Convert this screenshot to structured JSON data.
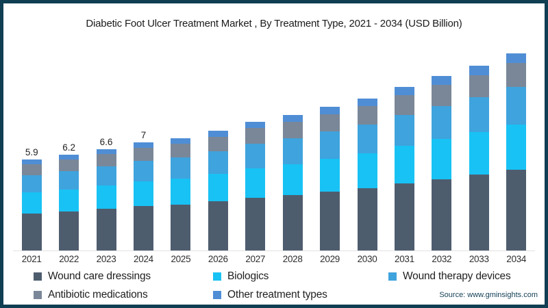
{
  "title": "Diabetic Foot Ulcer Treatment Market , By Treatment Type, 2021 - 2034 (USD Billion)",
  "source": "Source: www.gminsights.com",
  "colors": {
    "frame_border": "#103e52",
    "title_text": "#1b1b1b",
    "axis_label_text": "#2d2d2d",
    "baseline": "#e3e3e3",
    "source_text": "#113e54"
  },
  "chart_data": {
    "type": "bar",
    "stacked": true,
    "title": "Diabetic Foot Ulcer Treatment Market , By Treatment Type, 2021 - 2034 (USD Billion)",
    "xlabel": "",
    "ylabel": "USD Billion",
    "grid": false,
    "legend_position": "bottom",
    "categories": [
      "2021",
      "2022",
      "2023",
      "2024",
      "2025",
      "2026",
      "2027",
      "2028",
      "2029",
      "2030",
      "2031",
      "2032",
      "2033",
      "2034"
    ],
    "totals": [
      5.9,
      6.2,
      6.6,
      7.0,
      7.3,
      7.8,
      8.3,
      8.8,
      9.3,
      9.9,
      10.6,
      11.3,
      12.0,
      12.8
    ],
    "total_labels": [
      "5.9",
      "6.2",
      "6.6",
      "7",
      "",
      "",
      "",
      "",
      "",
      "",
      "",
      "",
      "",
      ""
    ],
    "series": [
      {
        "name": "Wound care dressings",
        "color": "#4e5d6e",
        "values": [
          2.42,
          2.54,
          2.71,
          2.87,
          2.99,
          3.2,
          3.4,
          3.61,
          3.81,
          4.06,
          4.35,
          4.63,
          4.92,
          5.25
        ]
      },
      {
        "name": "Biologics",
        "color": "#18c2f4",
        "values": [
          1.36,
          1.43,
          1.52,
          1.61,
          1.68,
          1.79,
          1.91,
          2.02,
          2.14,
          2.28,
          2.44,
          2.6,
          2.76,
          2.94
        ]
      },
      {
        "name": "Wound therapy devices",
        "color": "#3fa3dd",
        "values": [
          1.12,
          1.18,
          1.25,
          1.33,
          1.39,
          1.48,
          1.58,
          1.67,
          1.77,
          1.88,
          2.01,
          2.15,
          2.28,
          2.43
        ]
      },
      {
        "name": "Antibiotic medications",
        "color": "#7a8798",
        "values": [
          0.71,
          0.74,
          0.79,
          0.84,
          0.88,
          0.94,
          1.0,
          1.06,
          1.12,
          1.19,
          1.27,
          1.36,
          1.44,
          1.54
        ]
      },
      {
        "name": "Other treatment types",
        "color": "#4f8ed5",
        "values": [
          0.3,
          0.31,
          0.33,
          0.35,
          0.37,
          0.39,
          0.42,
          0.44,
          0.47,
          0.5,
          0.53,
          0.57,
          0.6,
          0.64
        ]
      }
    ]
  },
  "legend": {
    "items": [
      {
        "label": "Wound care dressings",
        "color": "#4e5d6e"
      },
      {
        "label": "Biologics",
        "color": "#18c2f4"
      },
      {
        "label": "Wound therapy devices",
        "color": "#3fa3dd"
      },
      {
        "label": "Antibiotic medications",
        "color": "#7a8798"
      },
      {
        "label": "Other treatment types",
        "color": "#4f8ed5"
      }
    ]
  }
}
